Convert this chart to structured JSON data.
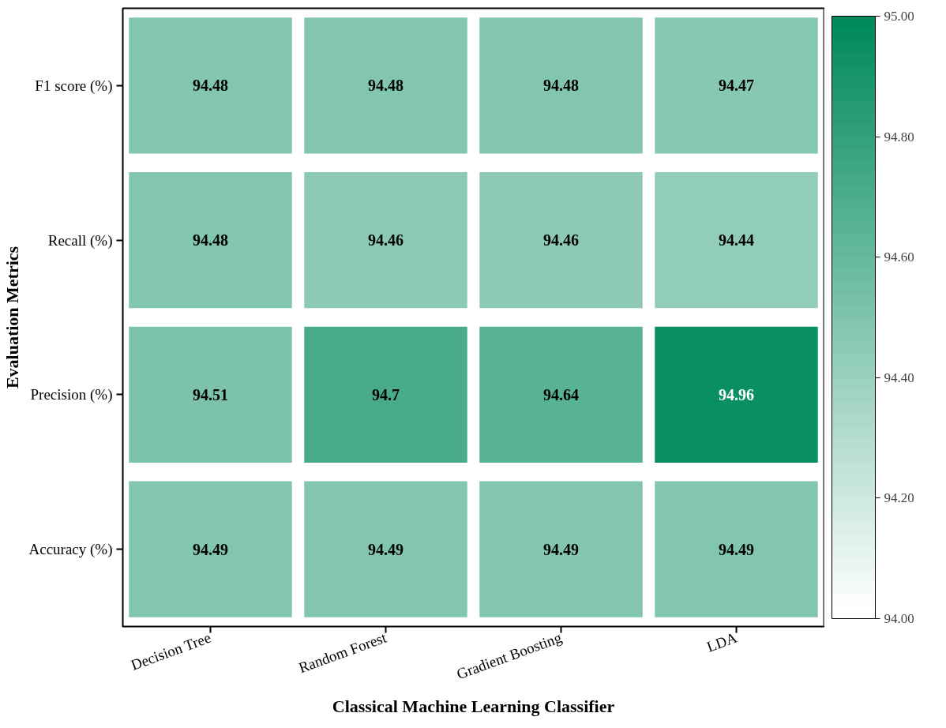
{
  "chart_data": {
    "type": "heatmap",
    "xlabel": "Classical Machine Learning Classifier",
    "ylabel": "Evaluation Metrics",
    "categories": [
      "Decision Tree",
      "Random Forest",
      "Gradient Boosting",
      "LDA"
    ],
    "y_categories": [
      "F1 score (%)",
      "Recall (%)",
      "Precision (%)",
      "Accuracy (%)"
    ],
    "cells": [
      [
        94.48,
        94.48,
        94.48,
        94.47
      ],
      [
        94.48,
        94.46,
        94.46,
        94.44
      ],
      [
        94.51,
        94.7,
        94.64,
        94.96
      ],
      [
        94.49,
        94.49,
        94.49,
        94.49
      ]
    ],
    "data_labels": true,
    "clim": [
      94,
      95
    ],
    "cticks": [
      {
        "value": 94,
        "label": "94.00"
      },
      {
        "value": 94.2,
        "label": "94.20"
      },
      {
        "value": 94.4,
        "label": "94.40"
      },
      {
        "value": 94.6,
        "label": "94.60"
      },
      {
        "value": 94.8,
        "label": "94.80"
      },
      {
        "value": 95,
        "label": "95.00"
      }
    ]
  }
}
